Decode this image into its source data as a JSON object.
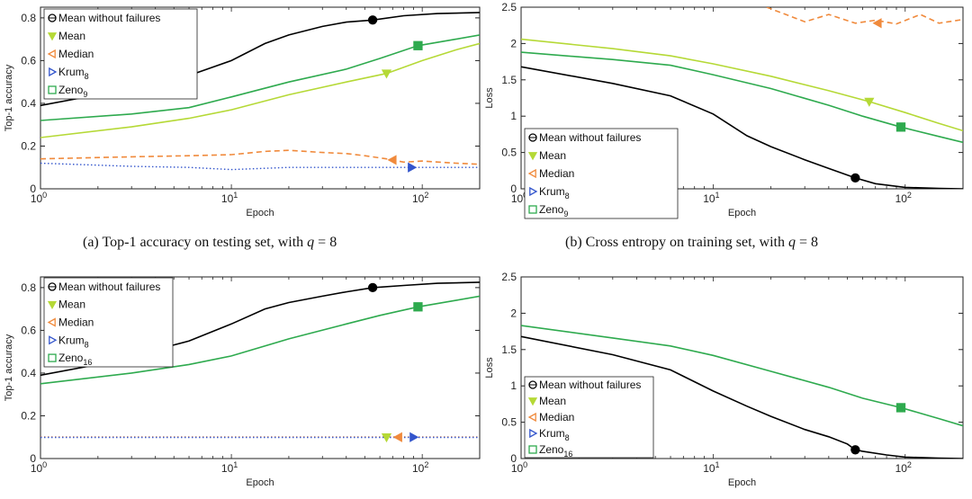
{
  "captions": [
    {
      "prefix": "(a)  Top-1 accuracy on testing set, with ",
      "var": "q",
      "suffix": " = 8"
    },
    {
      "prefix": "(b)  Cross entropy on training set, with ",
      "var": "q",
      "suffix": " = 8"
    }
  ],
  "colors": {
    "mean_without_failures": "#000000",
    "mean": "#b5d936",
    "median": "#f08a3c",
    "krum": "#3355cc",
    "zeno": "#2eaa4e"
  },
  "chart_data": [
    {
      "type": "line",
      "xscale": "log",
      "xlim": [
        1,
        200
      ],
      "ylim": [
        0,
        0.85
      ],
      "xticks": [
        {
          "v": 1,
          "base": "10",
          "exp": "0"
        },
        {
          "v": 10,
          "base": "10",
          "exp": "1"
        },
        {
          "v": 100,
          "base": "10",
          "exp": "2"
        }
      ],
      "yticks": [
        "0",
        "0.2",
        "0.4",
        "0.6",
        "0.8"
      ],
      "xlabel": "Epoch",
      "ylabel": "Top-1 accuracy",
      "legend_position": "top-left",
      "legend": [
        {
          "label": "Mean without failures",
          "sub": "",
          "marker": "circle-open",
          "color": "#000000"
        },
        {
          "label": "Mean",
          "sub": "",
          "marker": "tri-down",
          "color": "#b5d936"
        },
        {
          "label": "Median",
          "sub": "",
          "marker": "tri-left",
          "color": "#f08a3c"
        },
        {
          "label": "Krum",
          "sub": "8",
          "marker": "tri-right",
          "color": "#3355cc"
        },
        {
          "label": "Zeno",
          "sub": "9",
          "marker": "square",
          "color": "#2eaa4e"
        }
      ],
      "series": [
        {
          "name": "Mean without failures",
          "color": "#000000",
          "dash": "solid",
          "x": [
            1,
            2,
            3,
            6,
            10,
            15,
            20,
            30,
            40,
            55,
            80,
            120,
            200
          ],
          "y": [
            0.39,
            0.44,
            0.47,
            0.53,
            0.6,
            0.68,
            0.72,
            0.76,
            0.78,
            0.79,
            0.81,
            0.82,
            0.825
          ],
          "marker": {
            "shape": "circle",
            "x": 55,
            "y": 0.79
          }
        },
        {
          "name": "Mean",
          "color": "#b5d936",
          "dash": "solid",
          "x": [
            1,
            3,
            6,
            10,
            20,
            40,
            65,
            100,
            150,
            200
          ],
          "y": [
            0.24,
            0.29,
            0.33,
            0.37,
            0.44,
            0.5,
            0.54,
            0.6,
            0.65,
            0.68
          ],
          "marker": {
            "shape": "tri-down",
            "x": 65,
            "y": 0.54
          }
        },
        {
          "name": "Median",
          "color": "#f08a3c",
          "dash": "dashed",
          "x": [
            1,
            3,
            6,
            10,
            15,
            20,
            30,
            40,
            50,
            65,
            80,
            100,
            150,
            200
          ],
          "y": [
            0.14,
            0.15,
            0.155,
            0.16,
            0.175,
            0.18,
            0.17,
            0.165,
            0.155,
            0.14,
            0.125,
            0.13,
            0.12,
            0.115
          ],
          "marker": {
            "shape": "tri-left",
            "x": 70,
            "y": 0.135
          }
        },
        {
          "name": "Krum8",
          "color": "#3355cc",
          "dash": "dotted",
          "x": [
            1,
            3,
            6,
            10,
            20,
            50,
            100,
            200
          ],
          "y": [
            0.12,
            0.105,
            0.1,
            0.09,
            0.1,
            0.1,
            0.1,
            0.1
          ],
          "marker": {
            "shape": "tri-right",
            "x": 88,
            "y": 0.1
          }
        },
        {
          "name": "Zeno9",
          "color": "#2eaa4e",
          "dash": "solid",
          "x": [
            1,
            3,
            6,
            10,
            20,
            40,
            60,
            95,
            150,
            200
          ],
          "y": [
            0.32,
            0.35,
            0.38,
            0.43,
            0.5,
            0.56,
            0.61,
            0.67,
            0.7,
            0.72
          ],
          "marker": {
            "shape": "square",
            "x": 95,
            "y": 0.67
          }
        }
      ]
    },
    {
      "type": "line",
      "xscale": "log",
      "xlim": [
        1,
        200
      ],
      "ylim": [
        0,
        2.5
      ],
      "xticks": [
        {
          "v": 1,
          "base": "10",
          "exp": "0"
        },
        {
          "v": 10,
          "base": "10",
          "exp": "1"
        },
        {
          "v": 100,
          "base": "10",
          "exp": "2"
        }
      ],
      "yticks": [
        "0",
        "0.5",
        "1",
        "1.5",
        "2",
        "2.5"
      ],
      "xlabel": "Epoch",
      "ylabel": "Loss",
      "legend_position": "bottom-left",
      "legend": [
        {
          "label": "Mean without failures",
          "sub": "",
          "marker": "circle-open",
          "color": "#000000"
        },
        {
          "label": "Mean",
          "sub": "",
          "marker": "tri-down",
          "color": "#b5d936"
        },
        {
          "label": "Median",
          "sub": "",
          "marker": "tri-left",
          "color": "#f08a3c"
        },
        {
          "label": "Krum",
          "sub": "8",
          "marker": "tri-right",
          "color": "#3355cc"
        },
        {
          "label": "Zeno",
          "sub": "9",
          "marker": "square",
          "color": "#2eaa4e"
        }
      ],
      "series": [
        {
          "name": "Mean without failures",
          "color": "#000000",
          "dash": "solid",
          "x": [
            1,
            3,
            6,
            10,
            15,
            20,
            30,
            40,
            55,
            70,
            100,
            150,
            200
          ],
          "y": [
            1.68,
            1.45,
            1.28,
            1.03,
            0.73,
            0.58,
            0.4,
            0.28,
            0.15,
            0.07,
            0.02,
            0.005,
            0.0
          ],
          "marker": {
            "shape": "circle",
            "x": 55,
            "y": 0.15
          }
        },
        {
          "name": "Mean",
          "color": "#b5d936",
          "dash": "solid",
          "x": [
            1,
            3,
            6,
            10,
            20,
            40,
            65,
            100,
            150,
            200
          ],
          "y": [
            2.06,
            1.93,
            1.83,
            1.72,
            1.55,
            1.35,
            1.2,
            1.05,
            0.9,
            0.8
          ],
          "marker": {
            "shape": "tri-down",
            "x": 65,
            "y": 1.2
          }
        },
        {
          "name": "Median",
          "color": "#f08a3c",
          "dash": "dashed",
          "x": [
            19,
            25,
            30,
            40,
            55,
            70,
            90,
            120,
            150,
            200
          ],
          "y": [
            2.5,
            2.38,
            2.3,
            2.4,
            2.28,
            2.32,
            2.27,
            2.4,
            2.28,
            2.33
          ],
          "marker": {
            "shape": "tri-left",
            "x": 72,
            "y": 2.28
          }
        },
        {
          "name": "Zeno9",
          "color": "#2eaa4e",
          "dash": "solid",
          "x": [
            1,
            3,
            6,
            10,
            20,
            40,
            60,
            95,
            150,
            200
          ],
          "y": [
            1.88,
            1.78,
            1.7,
            1.57,
            1.38,
            1.15,
            1.0,
            0.85,
            0.72,
            0.64
          ],
          "marker": {
            "shape": "square",
            "x": 95,
            "y": 0.85
          }
        }
      ]
    },
    {
      "type": "line",
      "xscale": "log",
      "xlim": [
        1,
        200
      ],
      "ylim": [
        0,
        0.85
      ],
      "xticks": [
        {
          "v": 1,
          "base": "10",
          "exp": "0"
        },
        {
          "v": 10,
          "base": "10",
          "exp": "1"
        },
        {
          "v": 100,
          "base": "10",
          "exp": "2"
        }
      ],
      "yticks": [
        "0",
        "0.2",
        "0.4",
        "0.6",
        "0.8"
      ],
      "xlabel": "Epoch",
      "ylabel": "Top-1 accuracy",
      "legend_position": "top-left",
      "legend": [
        {
          "label": "Mean without failures",
          "sub": "",
          "marker": "circle-open",
          "color": "#000000"
        },
        {
          "label": "Mean",
          "sub": "",
          "marker": "tri-down",
          "color": "#b5d936"
        },
        {
          "label": "Median",
          "sub": "",
          "marker": "tri-left",
          "color": "#f08a3c"
        },
        {
          "label": "Krum",
          "sub": "8",
          "marker": "tri-right",
          "color": "#3355cc"
        },
        {
          "label": "Zeno",
          "sub": "16",
          "marker": "square",
          "color": "#2eaa4e"
        }
      ],
      "series": [
        {
          "name": "Mean without failures",
          "color": "#000000",
          "dash": "solid",
          "x": [
            1,
            2,
            3,
            6,
            10,
            15,
            20,
            30,
            40,
            55,
            80,
            120,
            200
          ],
          "y": [
            0.39,
            0.44,
            0.48,
            0.55,
            0.63,
            0.7,
            0.73,
            0.76,
            0.78,
            0.8,
            0.81,
            0.82,
            0.825
          ],
          "marker": {
            "shape": "circle",
            "x": 55,
            "y": 0.8
          }
        },
        {
          "name": "Zeno16",
          "color": "#2eaa4e",
          "dash": "solid",
          "x": [
            1,
            3,
            6,
            10,
            20,
            40,
            60,
            95,
            150,
            200
          ],
          "y": [
            0.35,
            0.4,
            0.44,
            0.48,
            0.56,
            0.63,
            0.67,
            0.71,
            0.74,
            0.76
          ],
          "marker": {
            "shape": "square",
            "x": 95,
            "y": 0.71
          }
        },
        {
          "name": "Mean",
          "color": "#b5d936",
          "dash": "dotted",
          "x": [
            1,
            200
          ],
          "y": [
            0.1,
            0.1
          ],
          "marker": {
            "shape": "tri-down",
            "x": 65,
            "y": 0.1
          }
        },
        {
          "name": "Median",
          "color": "#f08a3c",
          "dash": "dotted",
          "x": [
            1,
            200
          ],
          "y": [
            0.101,
            0.101
          ],
          "marker": {
            "shape": "tri-left",
            "x": 75,
            "y": 0.1
          }
        },
        {
          "name": "Krum8",
          "color": "#3355cc",
          "dash": "dotted",
          "x": [
            1,
            200
          ],
          "y": [
            0.099,
            0.099
          ],
          "marker": {
            "shape": "tri-right",
            "x": 90,
            "y": 0.1
          }
        }
      ]
    },
    {
      "type": "line",
      "xscale": "log",
      "xlim": [
        1,
        200
      ],
      "ylim": [
        0,
        2.5
      ],
      "xticks": [
        {
          "v": 1,
          "base": "10",
          "exp": "0"
        },
        {
          "v": 10,
          "base": "10",
          "exp": "1"
        },
        {
          "v": 100,
          "base": "10",
          "exp": "2"
        }
      ],
      "yticks": [
        "0",
        "0.5",
        "1",
        "1.5",
        "2",
        "2.5"
      ],
      "xlabel": "Epoch",
      "ylabel": "Loss",
      "legend_position": "bottom-left",
      "legend": [
        {
          "label": "Mean without failures",
          "sub": "",
          "marker": "circle-open",
          "color": "#000000"
        },
        {
          "label": "Mean",
          "sub": "",
          "marker": "tri-down",
          "color": "#b5d936"
        },
        {
          "label": "Median",
          "sub": "",
          "marker": "tri-left",
          "color": "#f08a3c"
        },
        {
          "label": "Krum",
          "sub": "8",
          "marker": "tri-right",
          "color": "#3355cc"
        },
        {
          "label": "Zeno",
          "sub": "16",
          "marker": "square",
          "color": "#2eaa4e"
        }
      ],
      "series": [
        {
          "name": "Mean without failures",
          "color": "#000000",
          "dash": "solid",
          "x": [
            1,
            3,
            6,
            10,
            15,
            20,
            30,
            40,
            50,
            55,
            60,
            80,
            100,
            150,
            200
          ],
          "y": [
            1.68,
            1.43,
            1.22,
            0.93,
            0.72,
            0.58,
            0.4,
            0.3,
            0.2,
            0.12,
            0.1,
            0.05,
            0.02,
            0.005,
            0.0
          ],
          "marker": {
            "shape": "circle",
            "x": 55,
            "y": 0.12
          }
        },
        {
          "name": "Zeno16",
          "color": "#2eaa4e",
          "dash": "solid",
          "x": [
            1,
            3,
            6,
            10,
            20,
            40,
            60,
            95,
            150,
            200
          ],
          "y": [
            1.83,
            1.66,
            1.55,
            1.42,
            1.2,
            0.98,
            0.83,
            0.7,
            0.55,
            0.45
          ],
          "marker": {
            "shape": "square",
            "x": 95,
            "y": 0.7
          }
        }
      ]
    }
  ]
}
